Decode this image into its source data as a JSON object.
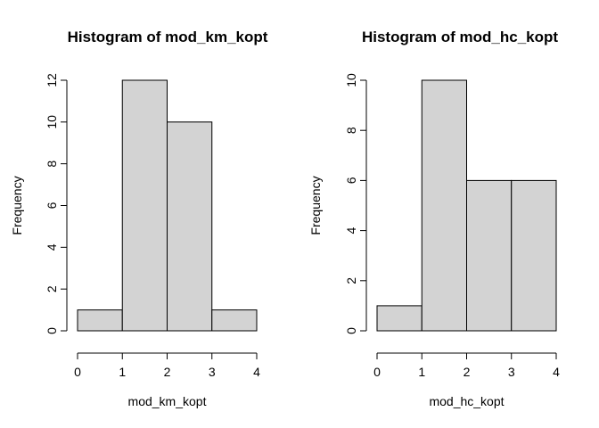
{
  "chart_data": [
    {
      "type": "bar",
      "title": "Histogram of mod_km_kopt",
      "xlabel": "mod_km_kopt",
      "ylabel": "Frequency",
      "bins": [
        [
          0,
          1
        ],
        [
          1,
          2
        ],
        [
          2,
          3
        ],
        [
          3,
          4
        ]
      ],
      "values": [
        1,
        12,
        10,
        1
      ],
      "xlim": [
        0,
        4
      ],
      "ylim": [
        0,
        12
      ],
      "xticks": [
        0,
        1,
        2,
        3,
        4
      ],
      "yticks": [
        0,
        2,
        4,
        6,
        8,
        10,
        12
      ],
      "bar_color": "#d3d3d3",
      "grid": false
    },
    {
      "type": "bar",
      "title": "Histogram of mod_hc_kopt",
      "xlabel": "mod_hc_kopt",
      "ylabel": "Frequency",
      "bins": [
        [
          0,
          1
        ],
        [
          1,
          2
        ],
        [
          2,
          3
        ],
        [
          3,
          4
        ]
      ],
      "values": [
        1,
        10,
        6,
        6
      ],
      "xlim": [
        0,
        4
      ],
      "ylim": [
        0,
        10
      ],
      "xticks": [
        0,
        1,
        2,
        3,
        4
      ],
      "yticks": [
        0,
        2,
        4,
        6,
        8,
        10
      ],
      "bar_color": "#d3d3d3",
      "grid": false
    }
  ]
}
